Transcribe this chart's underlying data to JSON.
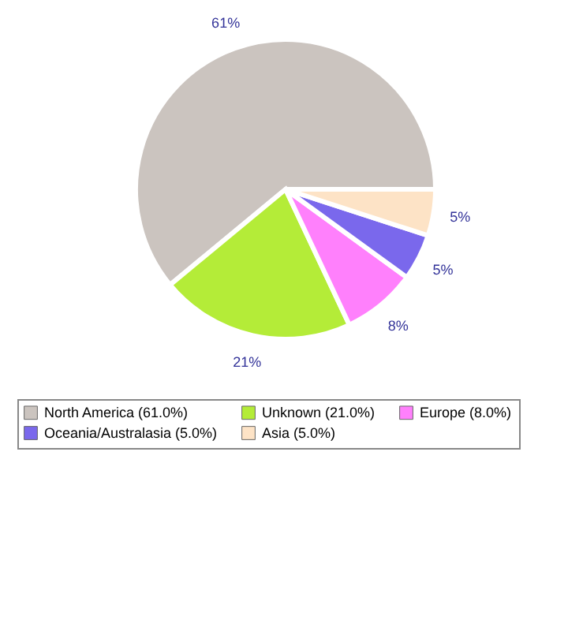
{
  "chart_data": {
    "type": "pie",
    "categories": [
      "North America (61.0%)",
      "Unknown (21.0%)",
      "Europe (8.0%)",
      "Oceania/Australasia (5.0%)",
      "Asia (5.0%)"
    ],
    "values": [
      61,
      21,
      8,
      5,
      5
    ],
    "value_labels": [
      "61%",
      "21%",
      "8%",
      "5%",
      "5%"
    ],
    "colors": [
      "#cbc4bf",
      "#b4ec38",
      "#ff80fc",
      "#7a68ec",
      "#fde3c6"
    ],
    "legend": "bottom"
  }
}
